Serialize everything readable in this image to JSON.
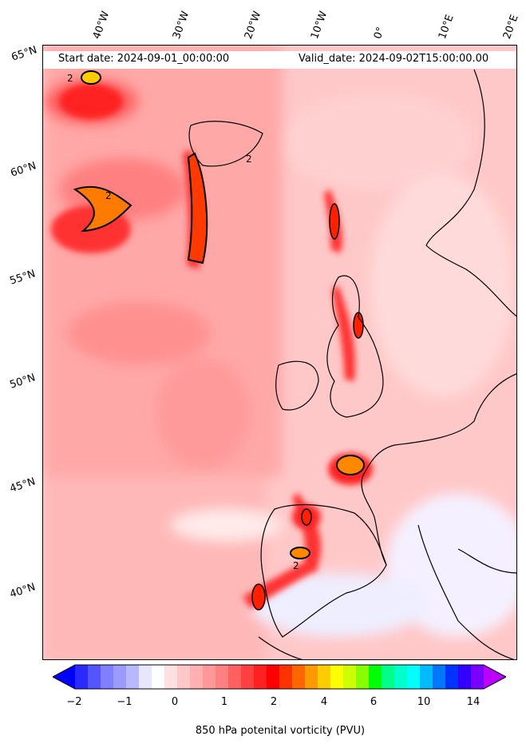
{
  "header": {
    "start_date": "Start date: 2024-09-01_00:00:00",
    "valid_date": "Valid_date: 2024-09-02T15:00:00.00"
  },
  "axes": {
    "longitude_labels": [
      "40°W",
      "30°W",
      "20°W",
      "10°W",
      "0°",
      "10°E",
      "20°E"
    ],
    "latitude_labels": [
      "65°N",
      "60°N",
      "55°N",
      "50°N",
      "45°N",
      "40°N"
    ]
  },
  "colorbar": {
    "label": "850 hPa potenital vorticity (PVU)",
    "ticks": [
      "−2",
      "−1",
      "0",
      "1",
      "2",
      "4",
      "6",
      "10",
      "14"
    ],
    "colors": [
      "#0000ff",
      "#2a2aff",
      "#5555ff",
      "#7f7fff",
      "#9a9aff",
      "#b8b8ff",
      "#e6e6ff",
      "#ffffff",
      "#ffe0e0",
      "#ffc8c8",
      "#ffb0b0",
      "#ff9898",
      "#ff8080",
      "#ff6060",
      "#ff4040",
      "#ff2020",
      "#ff0000",
      "#ff3300",
      "#ff6600",
      "#ff9900",
      "#ffcc00",
      "#ffff00",
      "#ccff00",
      "#88ff00",
      "#00ff00",
      "#00ff88",
      "#00ffcc",
      "#00ffff",
      "#00bbff",
      "#0077ff",
      "#0033ff",
      "#3300ff",
      "#7700ff",
      "#bb00ff"
    ]
  },
  "legend_contour_label": "2"
}
